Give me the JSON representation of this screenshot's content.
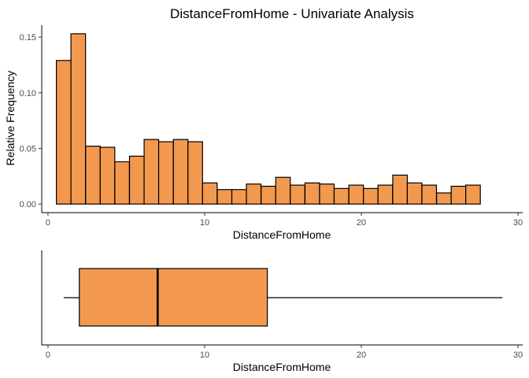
{
  "chart_data": [
    {
      "type": "bar",
      "title": "DistanceFromHome - Univariate Analysis",
      "xlabel": "DistanceFromHome",
      "ylabel": "Relative Frequency",
      "bar_color": "#F2994F",
      "edge_color": "#000000",
      "grid": false,
      "xlim": [
        -0.4,
        30.3
      ],
      "ylim": [
        -0.0077,
        0.1607
      ],
      "xticks": [
        0,
        10,
        20,
        30
      ],
      "yticks": [
        0.0,
        0.05,
        0.1,
        0.15
      ],
      "ytick_labels": [
        "0.00",
        "0.05",
        "0.10",
        "0.15"
      ],
      "bin_width": 0.93,
      "bin_centers": [
        1.0,
        1.93,
        2.87,
        3.8,
        4.73,
        5.67,
        6.6,
        7.53,
        8.47,
        9.4,
        10.33,
        11.27,
        12.2,
        13.13,
        14.07,
        15.0,
        15.93,
        16.87,
        17.8,
        18.73,
        19.67,
        20.6,
        21.53,
        22.47,
        23.4,
        24.33,
        25.27,
        26.2,
        27.13,
        28.07,
        29.0
      ],
      "values": [
        0.129,
        0.153,
        0.052,
        0.051,
        0.038,
        0.043,
        0.058,
        0.056,
        0.058,
        0.056,
        0.019,
        0.013,
        0.013,
        0.018,
        0.016,
        0.024,
        0.017,
        0.019,
        0.018,
        0.014,
        0.017,
        0.014,
        0.017,
        0.026,
        0.019,
        0.017,
        0.01,
        0.016,
        0.017,
        0,
        0
      ]
    },
    {
      "type": "box",
      "xlabel": "DistanceFromHome",
      "xlim": [
        -0.4,
        30.3
      ],
      "xticks": [
        0,
        10,
        20,
        30
      ],
      "box_color": "#F2994F",
      "edge_color": "#000000",
      "min": 1,
      "q1": 2,
      "median": 7,
      "q3": 14,
      "max": 29
    }
  ]
}
